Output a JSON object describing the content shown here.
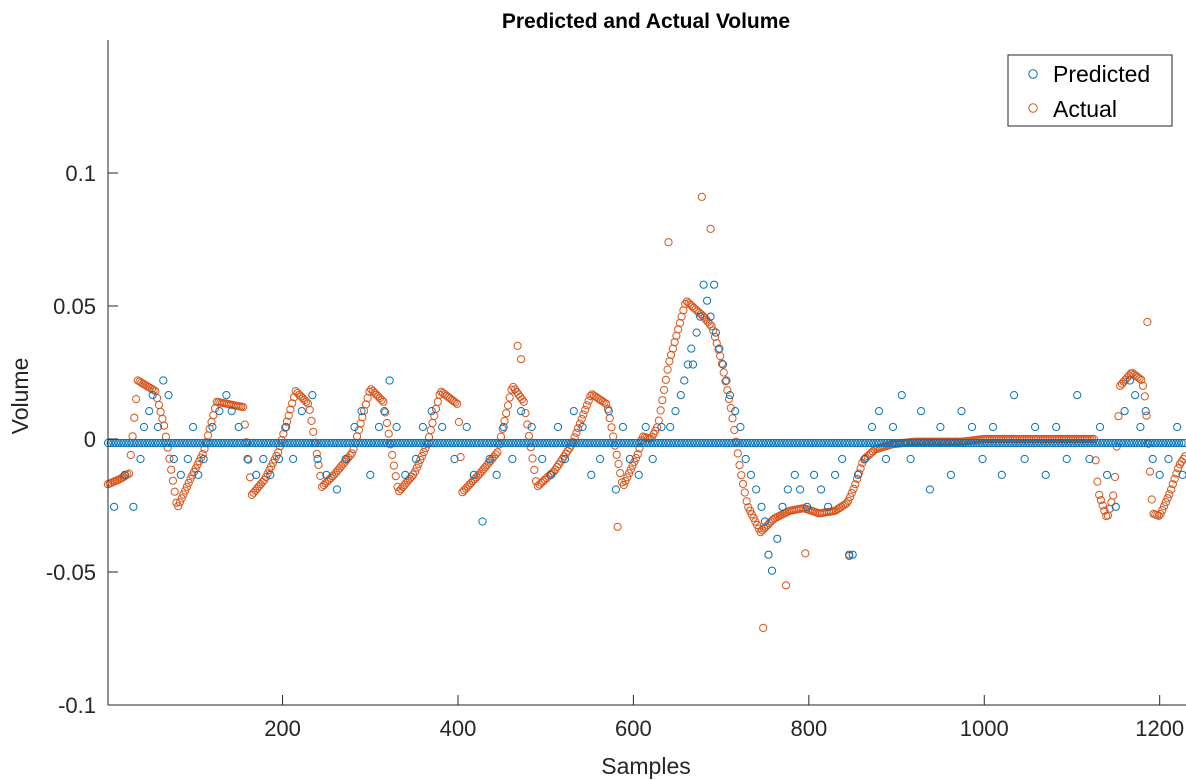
{
  "chart_data": {
    "type": "scatter",
    "title": "Predicted and Actual Volume",
    "xlabel": "Samples",
    "ylabel": "Volume",
    "xlim": [
      1,
      1230
    ],
    "ylim": [
      -0.1,
      0.15
    ],
    "xticks": [
      200,
      400,
      600,
      800,
      1000,
      1200
    ],
    "xtick_labels": [
      "200",
      "400",
      "600",
      "800",
      "1000",
      "1200"
    ],
    "yticks": [
      -0.1,
      -0.05,
      0,
      0.05,
      0.1
    ],
    "ytick_labels": [
      "-0.1",
      "-0.05",
      "0",
      "0.05",
      "0.1"
    ],
    "grid": false,
    "legend_position": "top-right",
    "series": [
      {
        "name": "Predicted",
        "color": "#0072BD",
        "marker": "circle-open",
        "base_level": -0.0015,
        "discrete_levels": [
          -0.0255,
          -0.019,
          -0.0135,
          -0.0075,
          -0.0015,
          0.0045,
          0.0105,
          0.0165,
          0.022,
          0.028,
          0.034,
          0.04,
          0.046,
          0.058
        ],
        "points": [
          [
            8,
            -0.0255
          ],
          [
            20,
            -0.0135
          ],
          [
            30,
            -0.0255
          ],
          [
            38,
            -0.0075
          ],
          [
            42,
            0.0045
          ],
          [
            48,
            0.0105
          ],
          [
            52,
            0.0165
          ],
          [
            58,
            0.0045
          ],
          [
            64,
            0.022
          ],
          [
            70,
            0.0165
          ],
          [
            76,
            -0.0075
          ],
          [
            84,
            -0.0135
          ],
          [
            92,
            -0.0075
          ],
          [
            98,
            0.0045
          ],
          [
            104,
            -0.0135
          ],
          [
            110,
            -0.0075
          ],
          [
            120,
            0.0045
          ],
          [
            128,
            0.0105
          ],
          [
            136,
            0.0165
          ],
          [
            142,
            0.0105
          ],
          [
            150,
            0.0045
          ],
          [
            160,
            -0.0075
          ],
          [
            170,
            -0.0135
          ],
          [
            178,
            -0.0075
          ],
          [
            186,
            -0.0135
          ],
          [
            196,
            -0.0075
          ],
          [
            204,
            0.0045
          ],
          [
            212,
            -0.0075
          ],
          [
            222,
            0.0105
          ],
          [
            234,
            0.0165
          ],
          [
            240,
            -0.0075
          ],
          [
            250,
            -0.0135
          ],
          [
            262,
            -0.019
          ],
          [
            272,
            -0.0075
          ],
          [
            282,
            0.0045
          ],
          [
            290,
            0.0105
          ],
          [
            300,
            -0.0135
          ],
          [
            310,
            0.0045
          ],
          [
            316,
            0.0105
          ],
          [
            322,
            0.022
          ],
          [
            330,
            0.0045
          ],
          [
            340,
            -0.0135
          ],
          [
            352,
            -0.0075
          ],
          [
            360,
            0.0045
          ],
          [
            370,
            0.0105
          ],
          [
            382,
            0.0045
          ],
          [
            396,
            -0.0075
          ],
          [
            410,
            0.0045
          ],
          [
            418,
            -0.0135
          ],
          [
            428,
            -0.031
          ],
          [
            436,
            -0.0075
          ],
          [
            444,
            -0.0135
          ],
          [
            452,
            0.0045
          ],
          [
            462,
            -0.0075
          ],
          [
            472,
            0.0105
          ],
          [
            484,
            0.0045
          ],
          [
            496,
            -0.0075
          ],
          [
            506,
            -0.0135
          ],
          [
            514,
            0.0045
          ],
          [
            522,
            -0.0075
          ],
          [
            532,
            0.0105
          ],
          [
            542,
            0.0045
          ],
          [
            552,
            -0.0135
          ],
          [
            562,
            -0.0075
          ],
          [
            572,
            0.0105
          ],
          [
            580,
            -0.019
          ],
          [
            588,
            0.0045
          ],
          [
            596,
            -0.0075
          ],
          [
            606,
            -0.0135
          ],
          [
            614,
            0.0045
          ],
          [
            622,
            -0.0075
          ],
          [
            632,
            0.0045
          ],
          [
            642,
            0.0045
          ],
          [
            648,
            0.0105
          ],
          [
            654,
            0.0165
          ],
          [
            658,
            0.022
          ],
          [
            662,
            0.028
          ],
          [
            666,
            0.034
          ],
          [
            668,
            0.028
          ],
          [
            672,
            0.04
          ],
          [
            676,
            0.046
          ],
          [
            680,
            0.058
          ],
          [
            684,
            0.052
          ],
          [
            688,
            0.046
          ],
          [
            692,
            0.058
          ],
          [
            694,
            0.04
          ],
          [
            698,
            0.034
          ],
          [
            702,
            0.028
          ],
          [
            706,
            0.022
          ],
          [
            710,
            0.0165
          ],
          [
            716,
            0.0105
          ],
          [
            722,
            0.0045
          ],
          [
            728,
            -0.0075
          ],
          [
            734,
            -0.0135
          ],
          [
            740,
            -0.019
          ],
          [
            746,
            -0.0255
          ],
          [
            750,
            -0.031
          ],
          [
            754,
            -0.0435
          ],
          [
            758,
            -0.0495
          ],
          [
            764,
            -0.0375
          ],
          [
            770,
            -0.0255
          ],
          [
            776,
            -0.019
          ],
          [
            784,
            -0.0135
          ],
          [
            790,
            -0.019
          ],
          [
            798,
            -0.0255
          ],
          [
            806,
            -0.0135
          ],
          [
            814,
            -0.019
          ],
          [
            822,
            -0.0255
          ],
          [
            830,
            -0.0135
          ],
          [
            838,
            -0.0075
          ],
          [
            846,
            -0.0435
          ],
          [
            850,
            -0.0435
          ],
          [
            856,
            -0.0135
          ],
          [
            864,
            -0.0075
          ],
          [
            872,
            0.0045
          ],
          [
            880,
            0.0105
          ],
          [
            888,
            -0.0075
          ],
          [
            896,
            0.0045
          ],
          [
            906,
            0.0165
          ],
          [
            916,
            -0.0075
          ],
          [
            928,
            0.0105
          ],
          [
            938,
            -0.019
          ],
          [
            950,
            0.0045
          ],
          [
            962,
            -0.0135
          ],
          [
            974,
            0.0105
          ],
          [
            986,
            0.0045
          ],
          [
            998,
            -0.0075
          ],
          [
            1010,
            0.0045
          ],
          [
            1020,
            -0.0135
          ],
          [
            1034,
            0.0165
          ],
          [
            1046,
            -0.0075
          ],
          [
            1058,
            0.0045
          ],
          [
            1070,
            -0.0135
          ],
          [
            1082,
            0.0045
          ],
          [
            1094,
            -0.0075
          ],
          [
            1106,
            0.0165
          ],
          [
            1120,
            -0.0075
          ],
          [
            1132,
            0.0045
          ],
          [
            1140,
            -0.0135
          ],
          [
            1150,
            -0.0255
          ],
          [
            1160,
            0.0105
          ],
          [
            1166,
            0.022
          ],
          [
            1172,
            0.0165
          ],
          [
            1178,
            0.0045
          ],
          [
            1184,
            0.0105
          ],
          [
            1192,
            -0.0075
          ],
          [
            1200,
            -0.0135
          ],
          [
            1210,
            -0.0075
          ],
          [
            1220,
            0.0045
          ],
          [
            1226,
            -0.0135
          ]
        ]
      },
      {
        "name": "Actual",
        "color": "#D95319",
        "marker": "circle-open",
        "key_points": [
          [
            1,
            -0.017
          ],
          [
            15,
            -0.015
          ],
          [
            25,
            -0.013
          ],
          [
            35,
            0.022
          ],
          [
            45,
            0.02
          ],
          [
            55,
            0.018
          ],
          [
            65,
            0.005
          ],
          [
            80,
            -0.026
          ],
          [
            95,
            -0.015
          ],
          [
            110,
            -0.005
          ],
          [
            125,
            0.014
          ],
          [
            140,
            0.013
          ],
          [
            155,
            0.012
          ],
          [
            165,
            -0.021
          ],
          [
            180,
            -0.015
          ],
          [
            195,
            -0.005
          ],
          [
            215,
            0.018
          ],
          [
            230,
            0.013
          ],
          [
            245,
            -0.018
          ],
          [
            260,
            -0.013
          ],
          [
            280,
            -0.005
          ],
          [
            300,
            0.019
          ],
          [
            315,
            0.014
          ],
          [
            332,
            -0.02
          ],
          [
            350,
            -0.013
          ],
          [
            365,
            -0.002
          ],
          [
            380,
            0.018
          ],
          [
            400,
            0.013
          ],
          [
            405,
            -0.02
          ],
          [
            425,
            -0.013
          ],
          [
            445,
            -0.005
          ],
          [
            462,
            0.02
          ],
          [
            475,
            0.014
          ],
          [
            490,
            -0.018
          ],
          [
            510,
            -0.012
          ],
          [
            530,
            -0.002
          ],
          [
            552,
            0.017
          ],
          [
            570,
            0.013
          ],
          [
            588,
            -0.018
          ],
          [
            606,
            -0.005
          ],
          [
            610,
            0.001
          ],
          [
            620,
            0.0
          ],
          [
            628,
            0.005
          ],
          [
            640,
            0.028
          ],
          [
            660,
            0.052
          ],
          [
            680,
            0.046
          ],
          [
            690,
            0.042
          ],
          [
            700,
            0.03
          ],
          [
            712,
            0.01
          ],
          [
            722,
            -0.012
          ],
          [
            730,
            -0.025
          ],
          [
            745,
            -0.035
          ],
          [
            760,
            -0.03
          ],
          [
            778,
            -0.027
          ],
          [
            794,
            -0.026
          ],
          [
            812,
            -0.028
          ],
          [
            830,
            -0.027
          ],
          [
            844,
            -0.024
          ],
          [
            852,
            -0.018
          ],
          [
            862,
            -0.008
          ],
          [
            875,
            -0.004
          ],
          [
            895,
            -0.002
          ],
          [
            920,
            -0.001
          ],
          [
            950,
            -0.001
          ],
          [
            975,
            -0.001
          ],
          [
            1000,
            0.0
          ],
          [
            1030,
            0.0
          ],
          [
            1060,
            0.0
          ],
          [
            1090,
            0.0
          ],
          [
            1125,
            0.0
          ],
          [
            1130,
            -0.02
          ],
          [
            1140,
            -0.03
          ],
          [
            1148,
            -0.02
          ],
          [
            1155,
            0.02
          ],
          [
            1168,
            0.025
          ],
          [
            1180,
            0.022
          ],
          [
            1184,
            0.014
          ],
          [
            1192,
            -0.028
          ],
          [
            1200,
            -0.029
          ],
          [
            1212,
            -0.02
          ],
          [
            1222,
            -0.01
          ],
          [
            1230,
            -0.006
          ]
        ],
        "outliers": [
          [
            468,
            0.035
          ],
          [
            472,
            0.03
          ],
          [
            582,
            -0.033
          ],
          [
            640,
            0.074
          ],
          [
            678,
            0.091
          ],
          [
            688,
            0.079
          ],
          [
            748,
            -0.071
          ],
          [
            774,
            -0.055
          ],
          [
            796,
            -0.043
          ],
          [
            846,
            -0.044
          ],
          [
            1186,
            0.044
          ]
        ]
      }
    ]
  }
}
